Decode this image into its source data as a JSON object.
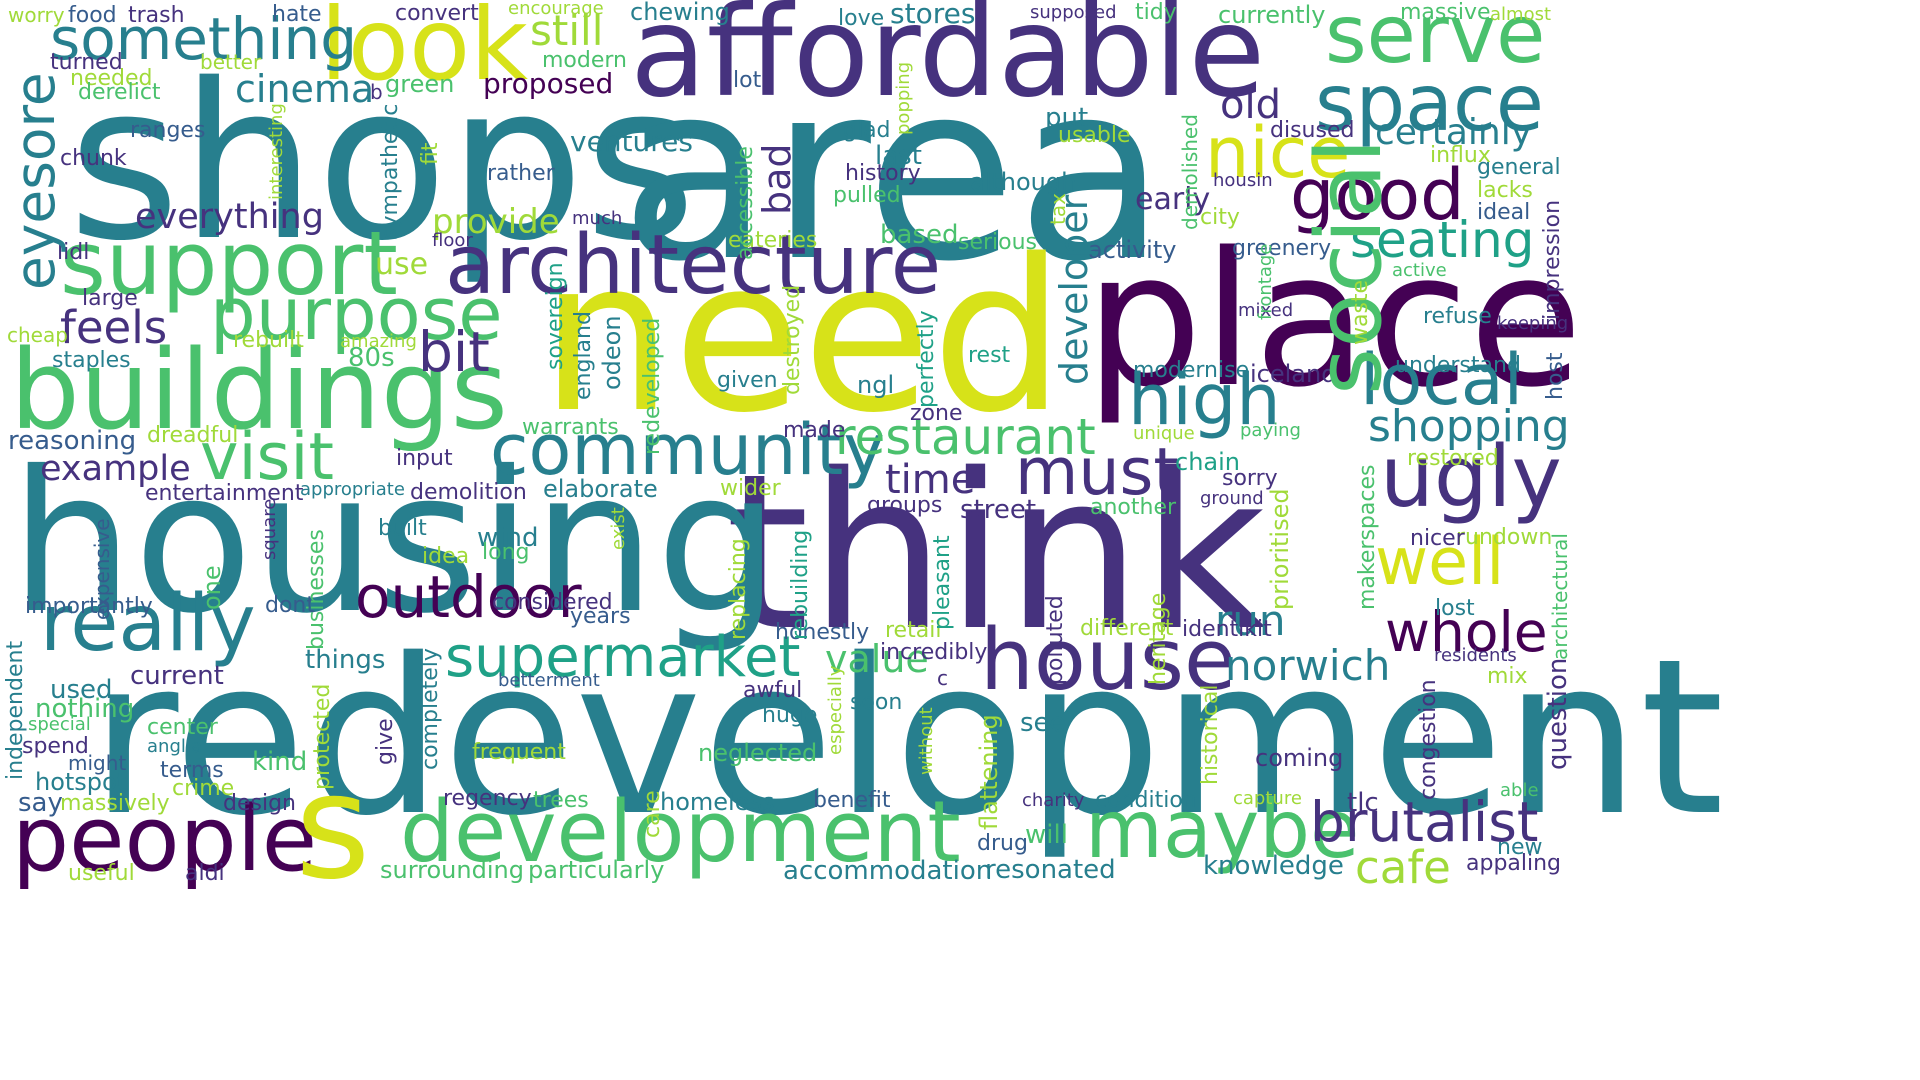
{
  "palette": {
    "dark_purple": "#440154",
    "indigo": "#46327e",
    "blue": "#365c8d",
    "teal": "#277f8e",
    "green_teal": "#1fa187",
    "green": "#4ac16d",
    "lime": "#a0da39",
    "yellow": "#d7e219"
  },
  "words": [
    "shops",
    "area",
    "affordable",
    "look",
    "something",
    "serve",
    "space",
    "place",
    "need",
    "think",
    "housing",
    "redevelopment",
    "development",
    "buildings",
    "support",
    "architecture",
    "purpose",
    "community",
    "social",
    "people",
    "s",
    "maybe",
    "really",
    "outdoor",
    "house",
    "supermarket",
    "brutalist",
    "good",
    "nice",
    "well",
    "ugly",
    "local",
    "must",
    "visit",
    "high",
    "restaurant",
    "eyesore",
    "whole",
    "cafe",
    "norwich",
    "time",
    "run",
    "bit",
    "feels",
    "seating",
    "shopping",
    "cinema",
    "still",
    "everything",
    "provide",
    "certainly",
    "old",
    "value",
    "example",
    "developer",
    "chewing",
    "stores",
    "love",
    "tidy",
    "currently",
    "massive",
    "almost",
    "worry",
    "food",
    "trash",
    "hate",
    "convert",
    "encourage",
    "supposed",
    "turned",
    "needed",
    "derelict",
    "chunk",
    "ranges",
    "better",
    "modern",
    "green",
    "proposed",
    "lot",
    "ventures",
    "rather",
    "history",
    "pulled",
    "glad",
    "last",
    "although",
    "early",
    "city",
    "general",
    "lacks",
    "ideal",
    "influx",
    "disused",
    "usable",
    "put",
    "popping",
    "fit",
    "interesting",
    "sympathetic",
    "accessible",
    "bad",
    "eateries",
    "based",
    "serious",
    "floor",
    "much",
    "lidl",
    "large",
    "use",
    "cheap",
    "rebuilt",
    "amazing",
    "staples",
    "80s",
    "activity",
    "greenery",
    "active",
    "mixed",
    "refuse",
    "waste",
    "keeping",
    "impression",
    "modernise",
    "iceland",
    "understand",
    "host",
    "zone",
    "rest",
    "ngl",
    "given",
    "destroyed",
    "perfectly",
    "reasoning",
    "dreadful",
    "warrants",
    "made",
    "unique",
    "paying",
    "input",
    "chain",
    "restored",
    "sorry",
    "ground",
    "entertainment",
    "appropriate",
    "demolition",
    "elaborate",
    "wider",
    "street",
    "another",
    "groups",
    "pleasant",
    "prioritised",
    "makerspaces",
    "rundown",
    "nicer",
    "wind",
    "long",
    "built",
    "idea",
    "square",
    "exist",
    "replacing",
    "rebuilding",
    "expensive",
    "importantly",
    "one",
    "dont",
    "considered",
    "years",
    "honestly",
    "retail",
    "different",
    "identikit",
    "lost",
    "residents",
    "independent",
    "things",
    "businesses",
    "polluted",
    "heritage",
    "architectural",
    "question",
    "used",
    "current",
    "nothing",
    "special",
    "betterment",
    "spend",
    "might",
    "hotspot",
    "terms",
    "crime",
    "center",
    "anglia",
    "completely",
    "protected",
    "give",
    "kind",
    "frequent",
    "neglected",
    "awful",
    "huge",
    "soon",
    "especially",
    "without",
    "flattening",
    "see",
    "historical",
    "coming",
    "congestion",
    "mix",
    "appaling",
    "able",
    "new",
    "say",
    "massively",
    "design",
    "regency",
    "trees",
    "homeless",
    "benefit",
    "charity",
    "condition",
    "tlc",
    "capture",
    "care",
    "drug",
    "will",
    "useful",
    "aldi",
    "surrounding",
    "particularly",
    "accommodation",
    "resonated",
    "knowledge",
    "sovereign",
    "england",
    "odeon",
    "redeveloped",
    "demolished",
    "housin",
    "tax",
    "frontage",
    "incredibly",
    "c",
    "b",
    "b2",
    "partial_top"
  ]
}
